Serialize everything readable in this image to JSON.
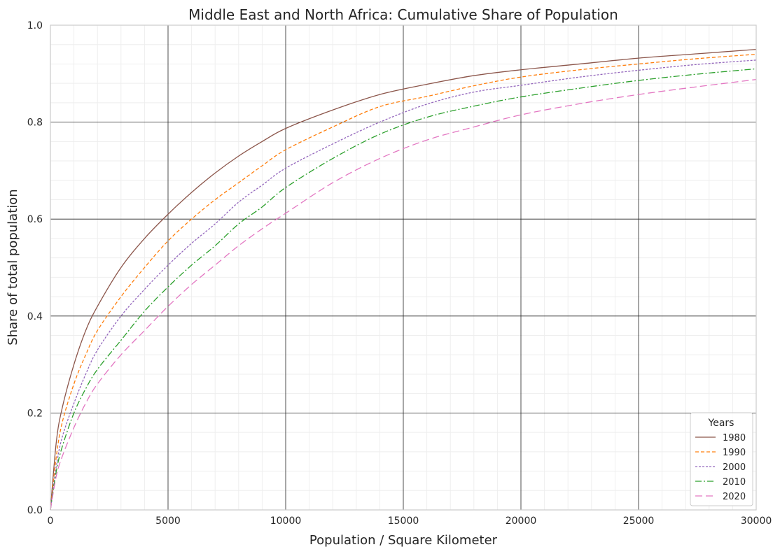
{
  "chart_data": {
    "type": "line",
    "title": "Middle East and North Africa: Cumulative Share of Population",
    "xlabel": "Population / Square Kilometer",
    "ylabel": "Share of total population",
    "xlim": [
      0,
      30000
    ],
    "ylim": [
      0,
      1.0
    ],
    "x_ticks": [
      "0",
      "5000",
      "10000",
      "15000",
      "20000",
      "25000",
      "30000"
    ],
    "y_ticks": [
      "0.0",
      "0.2",
      "0.4",
      "0.6",
      "0.8",
      "1.0"
    ],
    "grid": true,
    "minor_grid": true,
    "legend": {
      "title": "Years",
      "position": "lower-right"
    },
    "x": [
      0,
      250,
      500,
      1000,
      1500,
      2000,
      3000,
      4000,
      5000,
      6000,
      7000,
      8000,
      9000,
      10000,
      12000,
      14000,
      16000,
      18000,
      20000,
      22500,
      25000,
      27500,
      30000
    ],
    "series": [
      {
        "name": "1980",
        "color": "#8c564b",
        "dash": "",
        "values": [
          0.0,
          0.14,
          0.21,
          0.3,
          0.37,
          0.42,
          0.5,
          0.56,
          0.61,
          0.655,
          0.695,
          0.73,
          0.76,
          0.787,
          0.825,
          0.857,
          0.878,
          0.896,
          0.908,
          0.92,
          0.932,
          0.941,
          0.95
        ]
      },
      {
        "name": "1990",
        "color": "#ff7f0e",
        "dash": "5,3",
        "values": [
          0.0,
          0.11,
          0.18,
          0.26,
          0.32,
          0.37,
          0.44,
          0.5,
          0.555,
          0.6,
          0.64,
          0.675,
          0.71,
          0.743,
          0.79,
          0.832,
          0.853,
          0.875,
          0.893,
          0.908,
          0.92,
          0.931,
          0.94
        ]
      },
      {
        "name": "2000",
        "color": "#9467bd",
        "dash": "3,2",
        "values": [
          0.0,
          0.09,
          0.15,
          0.22,
          0.28,
          0.33,
          0.4,
          0.455,
          0.505,
          0.55,
          0.59,
          0.635,
          0.67,
          0.705,
          0.755,
          0.8,
          0.837,
          0.862,
          0.876,
          0.893,
          0.907,
          0.919,
          0.928
        ]
      },
      {
        "name": "2010",
        "color": "#2ca02c",
        "dash": "9,3,2,3",
        "values": [
          0.0,
          0.08,
          0.13,
          0.2,
          0.25,
          0.29,
          0.35,
          0.41,
          0.46,
          0.505,
          0.545,
          0.59,
          0.625,
          0.665,
          0.725,
          0.775,
          0.81,
          0.833,
          0.852,
          0.87,
          0.886,
          0.899,
          0.91
        ]
      },
      {
        "name": "2020",
        "color": "#e377c2",
        "dash": "10,5",
        "values": [
          0.0,
          0.07,
          0.11,
          0.17,
          0.22,
          0.26,
          0.32,
          0.37,
          0.42,
          0.465,
          0.505,
          0.545,
          0.58,
          0.612,
          0.675,
          0.725,
          0.763,
          0.79,
          0.815,
          0.838,
          0.857,
          0.873,
          0.888
        ]
      }
    ]
  }
}
